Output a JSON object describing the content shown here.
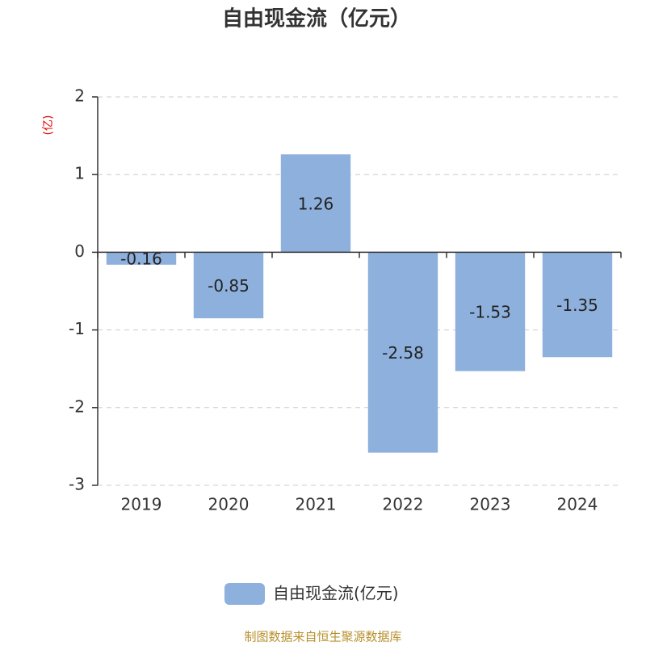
{
  "chart_data": {
    "type": "bar",
    "title": "自由现金流（亿元）",
    "ylabel": "(亿)",
    "categories": [
      "2019",
      "2020",
      "2021",
      "2022",
      "2023",
      "2024"
    ],
    "series": [
      {
        "name": "自由现金流(亿元)",
        "color": "#8eb0dc",
        "values": [
          -0.16,
          -0.85,
          1.26,
          -2.58,
          -1.53,
          -1.35
        ]
      }
    ],
    "ylim": [
      -3,
      2
    ],
    "yticks": [
      -3,
      -2,
      -1,
      0,
      1,
      2
    ],
    "grid": true,
    "legend": "bottom",
    "source": "制图数据来自恒生聚源数据库"
  }
}
